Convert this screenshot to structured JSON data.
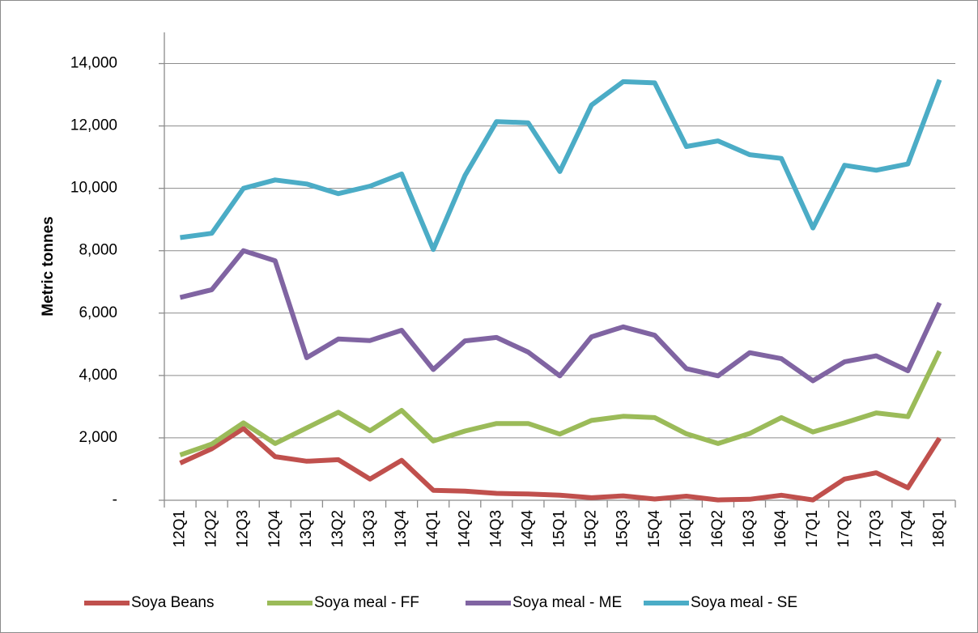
{
  "chart_data": {
    "type": "line",
    "y_label": "Metric tonnes",
    "categories": [
      "12Q1",
      "12Q2",
      "12Q3",
      "12Q4",
      "13Q1",
      "13Q2",
      "13Q3",
      "13Q4",
      "14Q1",
      "14Q2",
      "14Q3",
      "14Q4",
      "15Q1",
      "15Q2",
      "15Q3",
      "15Q4",
      "16Q1",
      "16Q2",
      "16Q3",
      "16Q4",
      "17Q1",
      "17Q2",
      "17Q3",
      "17Q4",
      "18Q1"
    ],
    "series": [
      {
        "name": "Soya Beans",
        "color": "#c0504d",
        "values": [
          1190,
          1650,
          2300,
          1400,
          1250,
          1300,
          680,
          1280,
          320,
          290,
          220,
          200,
          160,
          80,
          140,
          40,
          130,
          10,
          30,
          160,
          10,
          680,
          880,
          400,
          1990
        ]
      },
      {
        "name": "Soya meal - FF",
        "color": "#9bbb59",
        "values": [
          1450,
          1800,
          2480,
          1820,
          2320,
          2820,
          2230,
          2880,
          1900,
          2220,
          2460,
          2460,
          2120,
          2560,
          2690,
          2650,
          2130,
          1820,
          2140,
          2650,
          2190,
          2480,
          2800,
          2680,
          4780
        ]
      },
      {
        "name": "Soya meal - ME",
        "color": "#8064a2",
        "values": [
          6500,
          6750,
          8000,
          7680,
          4570,
          5170,
          5120,
          5450,
          4190,
          5110,
          5220,
          4750,
          3990,
          5240,
          5560,
          5290,
          4220,
          3990,
          4730,
          4540,
          3830,
          4440,
          4630,
          4150,
          6330
        ]
      },
      {
        "name": "Soya meal - SE",
        "color": "#4bacc6",
        "values": [
          8420,
          8560,
          10000,
          10270,
          10140,
          9830,
          10070,
          10460,
          8040,
          10410,
          12140,
          12100,
          10540,
          12670,
          13420,
          13380,
          11340,
          11520,
          11080,
          10960,
          8730,
          10740,
          10580,
          10780,
          13480
        ]
      }
    ],
    "ylim": [
      0,
      15000
    ],
    "yticks": [
      {
        "value": 0,
        "label": "-"
      },
      {
        "value": 2000,
        "label": "2,000"
      },
      {
        "value": 4000,
        "label": "4,000"
      },
      {
        "value": 6000,
        "label": "6,000"
      },
      {
        "value": 8000,
        "label": "8,000"
      },
      {
        "value": 10000,
        "label": "10,000"
      },
      {
        "value": 12000,
        "label": "12,000"
      },
      {
        "value": 14000,
        "label": "14,000"
      }
    ],
    "grid": true,
    "legend": "bottom"
  }
}
